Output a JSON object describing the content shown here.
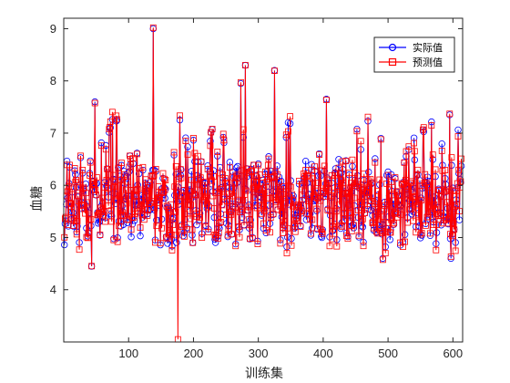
{
  "chart_data": {
    "type": "line",
    "title": "",
    "xlabel": "训练集",
    "ylabel": "血糖",
    "xlim": [
      0,
      615
    ],
    "ylim": [
      3,
      9.2
    ],
    "xticks": [
      100,
      200,
      300,
      400,
      500,
      600
    ],
    "yticks": [
      4,
      5,
      6,
      7,
      8,
      9
    ],
    "grid": false,
    "legend_position": "top-right",
    "notable_points": [
      {
        "x": 43,
        "y": 4.45
      },
      {
        "x": 48,
        "y": 7.6
      },
      {
        "x": 138,
        "y": 9.0
      },
      {
        "x": 176,
        "y": 3.05
      },
      {
        "x": 273,
        "y": 7.95
      },
      {
        "x": 280,
        "y": 8.3
      },
      {
        "x": 325,
        "y": 8.2
      },
      {
        "x": 405,
        "y": 7.65
      },
      {
        "x": 489,
        "y": 6.9
      },
      {
        "x": 492,
        "y": 4.6
      },
      {
        "x": 595,
        "y": 7.35
      },
      {
        "x": 597,
        "y": 4.6
      }
    ],
    "series": [
      {
        "name": "实际值",
        "color": "#0000ff",
        "marker": "circle",
        "n": 613,
        "mean": 5.7,
        "min": 4.45,
        "max": 9.0
      },
      {
        "name": "预测值",
        "color": "#ff0000",
        "marker": "square",
        "n": 613,
        "mean": 5.7,
        "min": 3.05,
        "max": 9.0
      }
    ]
  }
}
